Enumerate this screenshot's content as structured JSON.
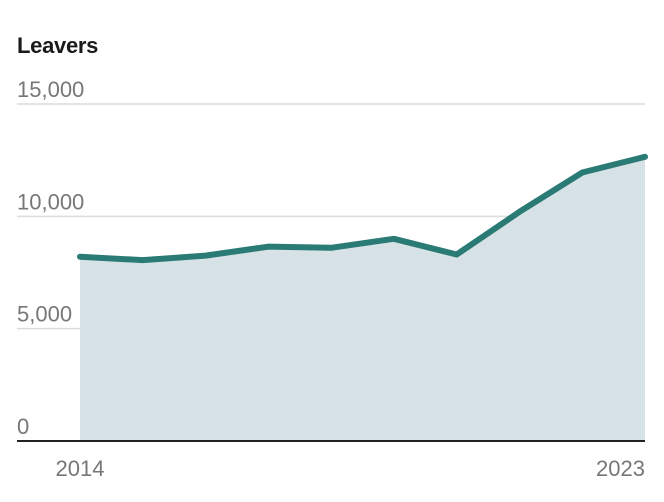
{
  "chart_data": {
    "type": "area",
    "title": "Leavers",
    "xlabel": "",
    "ylabel": "",
    "x": [
      2014,
      2015,
      2016,
      2017,
      2018,
      2019,
      2020,
      2021,
      2022,
      2023
    ],
    "values": [
      8200,
      8050,
      8250,
      8650,
      8600,
      9000,
      8300,
      10200,
      11950,
      12650
    ],
    "ylim": [
      0,
      15000
    ],
    "y_ticks": [
      {
        "value": 0,
        "label": "0"
      },
      {
        "value": 5000,
        "label": "5,000"
      },
      {
        "value": 10000,
        "label": "10,000"
      },
      {
        "value": 15000,
        "label": "15,000"
      }
    ],
    "x_ticks": [
      {
        "value": 2014,
        "label": "2014"
      },
      {
        "value": 2023,
        "label": "2023"
      }
    ],
    "grid": true,
    "legend": "none",
    "colors": {
      "line": "#2a7a76",
      "fill": "#d6e2e6",
      "grid": "#dcdcdc",
      "axis": "#222222"
    }
  }
}
